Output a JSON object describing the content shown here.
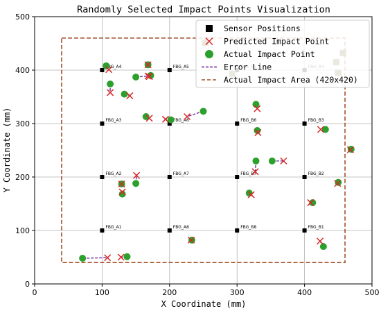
{
  "chart_data": {
    "type": "scatter",
    "title": "Randomly Selected Impact Points Visualization",
    "xlabel": "X Coordinate (mm)",
    "ylabel": "Y Coordinate (mm)",
    "xlim": [
      0,
      500
    ],
    "ylim": [
      0,
      500
    ],
    "xticks": [
      0,
      100,
      200,
      300,
      400,
      500
    ],
    "yticks": [
      0,
      100,
      200,
      300,
      400,
      500
    ],
    "grid": true,
    "legend_position": "top-right",
    "legend": [
      {
        "key": "sensor",
        "label": "Sensor Positions"
      },
      {
        "key": "predicted",
        "label": "Predicted Impact Point"
      },
      {
        "key": "actual",
        "label": "Actual Impact Point"
      },
      {
        "key": "error",
        "label": "Error Line"
      },
      {
        "key": "area",
        "label": "Actual Impact Area (420x420)"
      }
    ],
    "colors": {
      "sensor": "#000000",
      "predicted": "#d62728",
      "actual": "#2ca02c",
      "error": "#6a1b9a",
      "area": "#a0522d",
      "grid": "#b0b0b0"
    },
    "impact_area": {
      "x0": 40,
      "y0": 40,
      "x1": 460,
      "y1": 460
    },
    "sensors": [
      {
        "name": "FBG_A1",
        "x": 100,
        "y": 100
      },
      {
        "name": "FBG_A2",
        "x": 100,
        "y": 200
      },
      {
        "name": "FBG_A3",
        "x": 100,
        "y": 300
      },
      {
        "name": "FBG_A4",
        "x": 100,
        "y": 400
      },
      {
        "name": "FBG_A5",
        "x": 200,
        "y": 400
      },
      {
        "name": "FBG_A6",
        "x": 200,
        "y": 300
      },
      {
        "name": "FBG_A7",
        "x": 200,
        "y": 200
      },
      {
        "name": "FBG_A8",
        "x": 200,
        "y": 100
      },
      {
        "name": "FBG_B8",
        "x": 300,
        "y": 100
      },
      {
        "name": "FBG_B7",
        "x": 300,
        "y": 200
      },
      {
        "name": "FBG_B6",
        "x": 300,
        "y": 300
      },
      {
        "name": "FBG_B5",
        "x": 300,
        "y": 400
      },
      {
        "name": "FBG_B4",
        "x": 400,
        "y": 400
      },
      {
        "name": "FBG_B3",
        "x": 400,
        "y": 300
      },
      {
        "name": "FBG_B2",
        "x": 400,
        "y": 200
      },
      {
        "name": "FBG_B1",
        "x": 400,
        "y": 100
      }
    ],
    "impact_pairs": [
      {
        "actual": [
          71,
          48
        ],
        "predicted": [
          108,
          49
        ]
      },
      {
        "actual": [
          137,
          51
        ],
        "predicted": [
          128,
          50
        ]
      },
      {
        "actual": [
          233,
          82
        ],
        "predicted": [
          232,
          82
        ]
      },
      {
        "actual": [
          428,
          70
        ],
        "predicted": [
          423,
          80
        ]
      },
      {
        "actual": [
          412,
          152
        ],
        "predicted": [
          409,
          152
        ]
      },
      {
        "actual": [
          318,
          170
        ],
        "predicted": [
          321,
          167
        ]
      },
      {
        "actual": [
          130,
          168
        ],
        "predicted": [
          130,
          172
        ]
      },
      {
        "actual": [
          129,
          187
        ],
        "predicted": [
          129,
          187
        ]
      },
      {
        "actual": [
          150,
          188
        ],
        "predicted": [
          151,
          203
        ]
      },
      {
        "actual": [
          328,
          230
        ],
        "predicted": [
          327,
          210
        ]
      },
      {
        "actual": [
          352,
          230
        ],
        "predicted": [
          369,
          230
        ]
      },
      {
        "actual": [
          450,
          190
        ],
        "predicted": [
          449,
          188
        ]
      },
      {
        "actual": [
          469,
          252
        ],
        "predicted": [
          468,
          251
        ]
      },
      {
        "actual": [
          431,
          289
        ],
        "predicted": [
          424,
          289
        ]
      },
      {
        "actual": [
          330,
          287
        ],
        "predicted": [
          331,
          283
        ]
      },
      {
        "actual": [
          328,
          336
        ],
        "predicted": [
          330,
          328
        ]
      },
      {
        "actual": [
          250,
          323
        ],
        "predicted": [
          226,
          313
        ]
      },
      {
        "actual": [
          202,
          307
        ],
        "predicted": [
          194,
          308
        ]
      },
      {
        "actual": [
          165,
          313
        ],
        "predicted": [
          170,
          310
        ]
      },
      {
        "actual": [
          133,
          355
        ],
        "predicted": [
          141,
          352
        ]
      },
      {
        "actual": [
          112,
          374
        ],
        "predicted": [
          112,
          358
        ]
      },
      {
        "actual": [
          150,
          387
        ],
        "predicted": [
          168,
          389
        ]
      },
      {
        "actual": [
          168,
          410
        ],
        "predicted": [
          168,
          410
        ]
      },
      {
        "actual": [
          172,
          390
        ],
        "predicted": [
          170,
          388
        ]
      },
      {
        "actual": [
          106,
          408
        ],
        "predicted": [
          110,
          401
        ]
      },
      {
        "actual": [
          253,
          451
        ],
        "predicted": [
          253,
          451
        ]
      },
      {
        "actual": [
          293,
          393
        ],
        "predicted": [
          293,
          393
        ]
      },
      {
        "actual": [
          457,
          432
        ],
        "predicted": [
          457,
          432
        ]
      },
      {
        "actual": [
          447,
          415
        ],
        "predicted": [
          447,
          415
        ]
      },
      {
        "actual": [
          450,
          395
        ],
        "predicted": [
          450,
          395
        ]
      }
    ]
  }
}
